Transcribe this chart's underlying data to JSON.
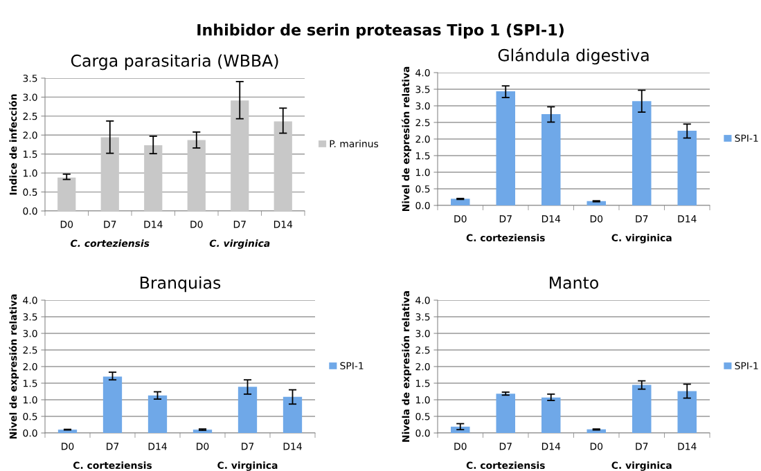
{
  "chart_data": [
    {
      "type": "bar",
      "title": "Carga parasitaria (WBBA)",
      "ylabel": "Indice de infección",
      "categories": [
        "D0",
        "D7",
        "D14",
        "D0",
        "D7",
        "D14"
      ],
      "series": [
        {
          "name": "P. marinus",
          "color": "#c8c8c8",
          "values": [
            0.88,
            1.94,
            1.73,
            1.87,
            2.91,
            2.36
          ],
          "errors": [
            [
              0.83,
              0.97
            ],
            [
              1.52,
              2.37
            ],
            [
              1.51,
              1.97
            ],
            [
              1.66,
              2.08
            ],
            [
              2.43,
              3.41
            ],
            [
              2.05,
              2.71
            ]
          ]
        }
      ],
      "ylim": [
        0,
        3.5
      ],
      "yticks": [
        {
          "value": 0,
          "label": "0.0"
        },
        0.5,
        {
          "value": 1,
          "label": "1.0"
        },
        1.5,
        {
          "value": 2,
          "label": "2.0"
        },
        2.5,
        {
          "value": 3,
          "label": "3.0"
        },
        3.5
      ],
      "grid": "y",
      "legend": "right",
      "annotations": [
        "Inhibidor de serin proteasas Tipo 1 (SPI-1)",
        "C. corteziensis",
        "C. virginica"
      ]
    },
    {
      "type": "bar",
      "title": "Glándula digestiva",
      "ylabel": "Nivel de expresión relativa",
      "categories": [
        "D0",
        "D7",
        "D14",
        "D0",
        "D7",
        "D14"
      ],
      "series": [
        {
          "name": "SPI-1",
          "color": "#6fa8e8",
          "values": [
            0.2,
            3.44,
            2.75,
            0.13,
            3.14,
            2.25
          ],
          "errors": [
            [
              0.18,
              0.21
            ],
            [
              3.25,
              3.6
            ],
            [
              2.51,
              2.97
            ],
            [
              0.11,
              0.14
            ],
            [
              2.81,
              3.47
            ],
            [
              2.03,
              2.45
            ]
          ]
        }
      ],
      "ylim": [
        0,
        4
      ],
      "yticks": [
        {
          "value": 0,
          "label": "0.0"
        },
        0.5,
        {
          "value": 1,
          "label": "1.0"
        },
        1.5,
        {
          "value": 2,
          "label": "2.0"
        },
        2.5,
        {
          "value": 3,
          "label": "3.0"
        },
        3.5,
        {
          "value": 4,
          "label": "4.0"
        }
      ],
      "grid": "y",
      "legend": "right",
      "annotations": [
        "C. corteziensis",
        "C. virginica"
      ]
    },
    {
      "type": "bar",
      "title": "Branquias",
      "ylabel": "Nivel de expresión relativa",
      "categories": [
        "D0",
        "D7",
        "D14",
        "D0",
        "D7",
        "D14"
      ],
      "series": [
        {
          "name": "SPI-1",
          "color": "#6fa8e8",
          "values": [
            0.1,
            1.7,
            1.13,
            0.1,
            1.39,
            1.09
          ],
          "errors": [
            [
              0.09,
              0.11
            ],
            [
              1.6,
              1.83
            ],
            [
              1.02,
              1.24
            ],
            [
              0.08,
              0.12
            ],
            [
              1.17,
              1.6
            ],
            [
              0.87,
              1.3
            ]
          ]
        }
      ],
      "ylim": [
        0,
        4
      ],
      "yticks": [
        {
          "value": 0,
          "label": "0.0"
        },
        0.5,
        {
          "value": 1,
          "label": "1.0"
        },
        1.5,
        {
          "value": 2,
          "label": "2.0"
        },
        2.5,
        {
          "value": 3,
          "label": "3.0"
        },
        3.5,
        {
          "value": 4,
          "label": "4.0"
        }
      ],
      "grid": "y",
      "legend": "right",
      "annotations": [
        "C. corteziensis",
        "C. virginica"
      ]
    },
    {
      "type": "bar",
      "title": "Manto",
      "ylabel": "Nivela de expresión relativa",
      "categories": [
        "D0",
        "D7",
        "D14",
        "D0",
        "D7",
        "D14"
      ],
      "series": [
        {
          "name": "SPI-1",
          "color": "#6fa8e8",
          "values": [
            0.19,
            1.18,
            1.07,
            0.11,
            1.45,
            1.26
          ],
          "errors": [
            [
              0.1,
              0.28
            ],
            [
              1.14,
              1.23
            ],
            [
              0.98,
              1.17
            ],
            [
              0.09,
              0.12
            ],
            [
              1.32,
              1.57
            ],
            [
              1.05,
              1.47
            ]
          ]
        }
      ],
      "ylim": [
        0,
        4
      ],
      "yticks": [
        {
          "value": 0,
          "label": "0.0"
        },
        0.5,
        {
          "value": 1,
          "label": "1.0"
        },
        1.5,
        {
          "value": 2,
          "label": "2.0"
        },
        2.5,
        {
          "value": 3,
          "label": "3.0"
        },
        3.5,
        {
          "value": 4,
          "label": "4.0"
        }
      ],
      "grid": "y",
      "legend": "right",
      "annotations": [
        "C. corteziensis",
        "C. virginica"
      ]
    }
  ]
}
